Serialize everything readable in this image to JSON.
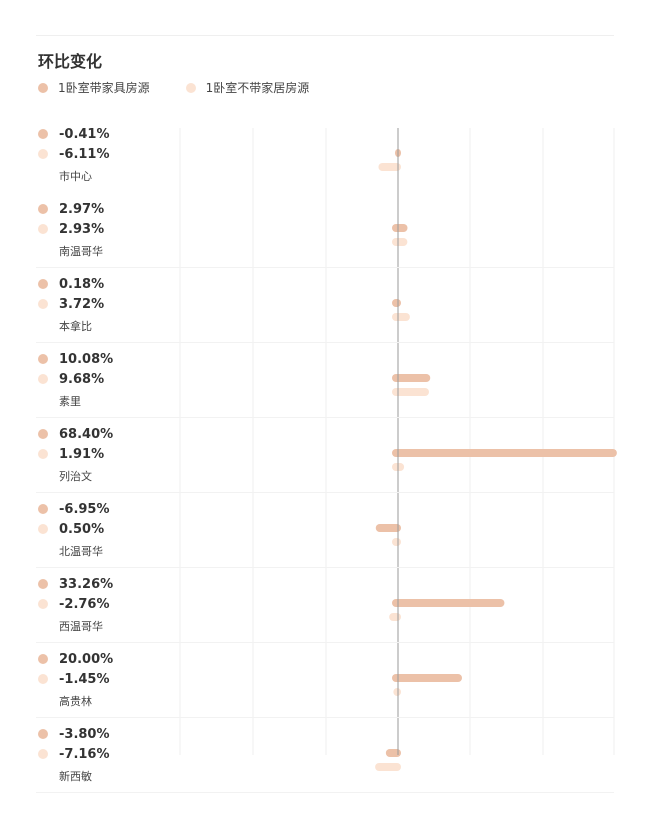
{
  "title": "环比变化",
  "legend": [
    {
      "label": "1卧室带家具房源",
      "color": "#ecc1a8"
    },
    {
      "label": "1卧室不带家居房源",
      "color": "#fbe3d3"
    }
  ],
  "chart_data": {
    "type": "bar",
    "orientation": "horizontal",
    "title": "环比变化",
    "categories": [
      "市中心",
      "南温哥华",
      "本拿比",
      "素里",
      "列治文",
      "北温哥华",
      "西温哥华",
      "高贵林",
      "新西敏"
    ],
    "series": [
      {
        "name": "1卧室带家具房源",
        "values": [
          -0.41,
          2.97,
          0.18,
          10.08,
          68.4,
          -6.95,
          33.26,
          20.0,
          -3.8
        ]
      },
      {
        "name": "1卧室不带家居房源",
        "values": [
          -6.11,
          2.93,
          3.72,
          9.68,
          1.91,
          0.5,
          -2.76,
          -1.45,
          -7.16
        ]
      }
    ],
    "labels": [
      [
        "-0.41%",
        "-6.11%"
      ],
      [
        "2.97%",
        "2.93%"
      ],
      [
        "0.18%",
        "3.72%"
      ],
      [
        "10.08%",
        "9.68%"
      ],
      [
        "68.40%",
        "1.91%"
      ],
      [
        "-6.95%",
        "0.50%"
      ],
      [
        "33.26%",
        "-2.76%"
      ],
      [
        "20.00%",
        "-1.45%"
      ],
      [
        "-3.80%",
        "-7.16%"
      ]
    ],
    "xlim": [
      -10,
      70
    ],
    "grid": true,
    "legend_position": "top-left"
  }
}
